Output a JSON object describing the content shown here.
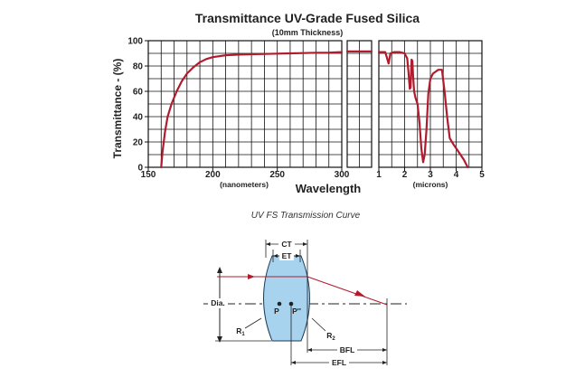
{
  "chart_data": {
    "type": "line",
    "title": "Transmittance UV-Grade Fused Silica",
    "subtitle": "(10mm Thickness)",
    "ylabel": "Transmittance - (%)",
    "xlabel": "Wavelength",
    "ylim": [
      0,
      100
    ],
    "yticks": [
      "0",
      "20",
      "40",
      "60",
      "80",
      "100"
    ],
    "grid": true,
    "caption": "UV FS Transmission Curve",
    "series_color": "#b01c2e",
    "panels": [
      {
        "name": "nanometers",
        "unit_label": "(nanometers)",
        "xlim": [
          150,
          300
        ],
        "xticks": [
          "150",
          "200",
          "250",
          "300"
        ],
        "x": [
          160,
          161,
          163,
          165,
          168,
          172,
          176,
          180,
          185,
          190,
          195,
          200,
          210,
          220,
          230,
          240,
          250,
          260,
          270,
          280,
          290,
          300
        ],
        "y": [
          0,
          12,
          28,
          40,
          50,
          60,
          68,
          74,
          79,
          83,
          85.5,
          87,
          88.5,
          89,
          89.3,
          89.5,
          89.8,
          90,
          90.2,
          90.5,
          90.6,
          91
        ]
      },
      {
        "name": "visible",
        "unit_label": "",
        "xlim": [
          0,
          1
        ],
        "xticks": [],
        "x": [
          0,
          1
        ],
        "y": [
          91.5,
          91.5
        ]
      },
      {
        "name": "microns",
        "unit_label": "(microns)",
        "xlim": [
          1,
          5
        ],
        "xticks": [
          "1",
          "2",
          "3",
          "4",
          "5"
        ],
        "x": [
          1.0,
          1.25,
          1.35,
          1.38,
          1.45,
          1.6,
          1.8,
          2.0,
          2.1,
          2.15,
          2.2,
          2.23,
          2.27,
          2.3,
          2.33,
          2.37,
          2.42,
          2.5,
          2.58,
          2.65,
          2.72,
          2.78,
          2.85,
          2.92,
          3.0,
          3.1,
          3.3,
          3.45,
          3.55,
          3.65,
          3.75,
          3.9,
          4.1,
          4.3,
          4.45
        ],
        "y": [
          91,
          91,
          84,
          82,
          90,
          91,
          91,
          90,
          86,
          75,
          62,
          63,
          85,
          84,
          72,
          60,
          55,
          50,
          35,
          15,
          4,
          10,
          30,
          58,
          70,
          74,
          77,
          77,
          60,
          40,
          23,
          18,
          12,
          6,
          0
        ]
      }
    ]
  },
  "lens_diagram": {
    "labels": {
      "ct": "CT",
      "et": "ET",
      "dia": "Dia.",
      "p": "P",
      "p2": "P''",
      "r1": "R",
      "r1_sub": "1",
      "r2": "R",
      "r2_sub": "2",
      "bfl": "BFL",
      "efl": "EFL"
    },
    "lens_fill": "#a7d3ef",
    "ray_color": "#b01c2e"
  }
}
